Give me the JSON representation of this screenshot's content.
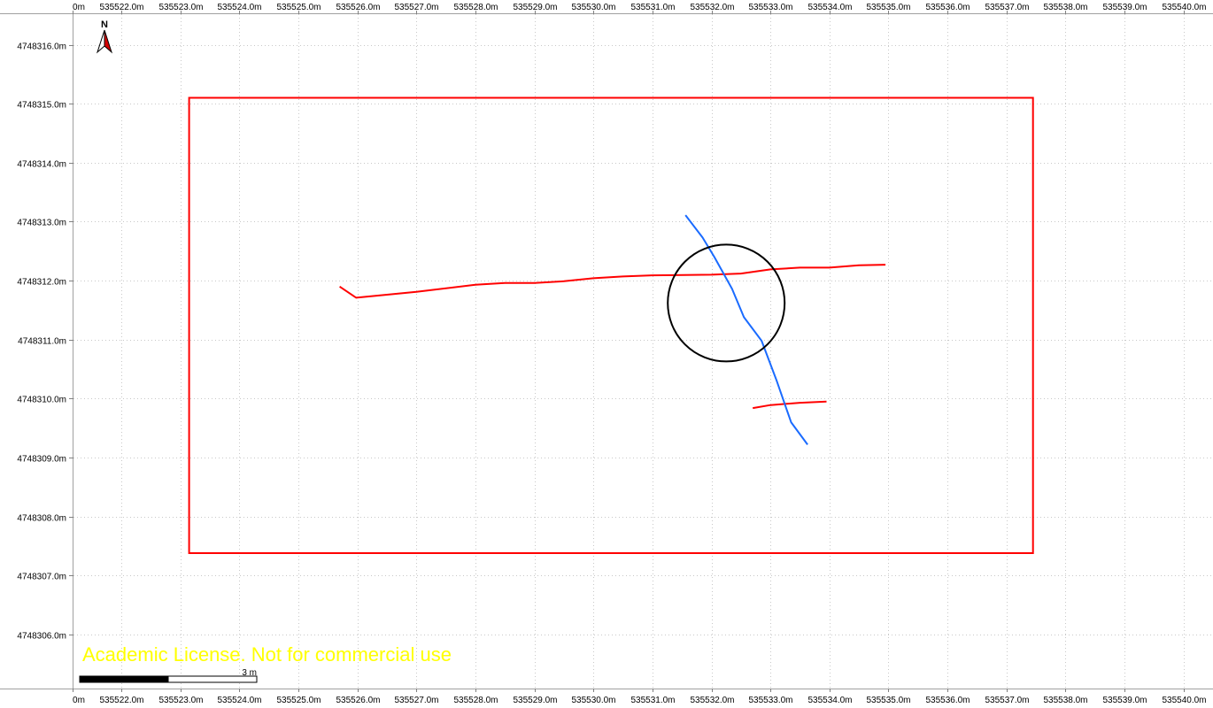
{
  "axes": {
    "x_ticks": [
      "0m",
      "535522.0m",
      "535523.0m",
      "535524.0m",
      "535525.0m",
      "535526.0m",
      "535527.0m",
      "535528.0m",
      "535529.0m",
      "535530.0m",
      "535531.0m",
      "535532.0m",
      "535533.0m",
      "535534.0m",
      "535535.0m",
      "535536.0m",
      "535537.0m",
      "535538.0m",
      "535539.0m",
      "535540.0m"
    ],
    "y_ticks": [
      "4748316.0m",
      "4748315.0m",
      "4748314.0m",
      "4748313.0m",
      "4748312.0m",
      "4748311.0m",
      "4748310.0m",
      "4748309.0m",
      "4748308.0m",
      "4748307.0m",
      "4748306.0m"
    ],
    "grid": true
  },
  "north_arrow": {
    "label": "N"
  },
  "scale_bar": {
    "label": "3 m"
  },
  "watermark": {
    "text": "Academic License. Not for commercial use",
    "color": "#ffff00"
  },
  "features": {
    "boundary_rectangle": {
      "color": "#ff0000",
      "coords": [
        [
          535523.15,
          4748315.1
        ],
        [
          535537.45,
          4748315.1
        ],
        [
          535537.45,
          4748307.38
        ],
        [
          535523.15,
          4748307.38
        ]
      ]
    },
    "red_line_main": {
      "color": "#ff0000",
      "coords": [
        [
          535525.7,
          4748311.9
        ],
        [
          535525.98,
          4748311.71
        ],
        [
          535527.0,
          4748311.81
        ],
        [
          535528.0,
          4748311.93
        ],
        [
          535528.5,
          4748311.96
        ],
        [
          535529.0,
          4748311.96
        ],
        [
          535529.5,
          4748311.99
        ],
        [
          535530.0,
          4748312.04
        ],
        [
          535530.5,
          4748312.07
        ],
        [
          535531.0,
          4748312.09
        ],
        [
          535532.0,
          4748312.1
        ],
        [
          535532.5,
          4748312.12
        ],
        [
          535533.0,
          4748312.19
        ],
        [
          535533.5,
          4748312.22
        ],
        [
          535534.0,
          4748312.22
        ],
        [
          535534.5,
          4748312.26
        ],
        [
          535534.95,
          4748312.27
        ]
      ]
    },
    "red_line_short": {
      "color": "#ff0000",
      "coords": [
        [
          535532.7,
          4748309.84
        ],
        [
          535533.0,
          4748309.89
        ],
        [
          535533.5,
          4748309.93
        ],
        [
          535533.95,
          4748309.95
        ]
      ]
    },
    "blue_line": {
      "color": "#1a6bff",
      "coords": [
        [
          535531.56,
          4748313.11
        ],
        [
          535531.85,
          4748312.73
        ],
        [
          535532.05,
          4748312.4
        ],
        [
          535532.35,
          4748311.86
        ],
        [
          535532.55,
          4748311.38
        ],
        [
          535532.85,
          4748310.98
        ],
        [
          535533.1,
          4748310.32
        ],
        [
          535533.35,
          4748309.6
        ],
        [
          535533.63,
          4748309.22
        ]
      ]
    },
    "circle": {
      "color": "#000000",
      "center": [
        535532.25,
        4748311.62
      ],
      "radius_m": 0.99
    }
  }
}
